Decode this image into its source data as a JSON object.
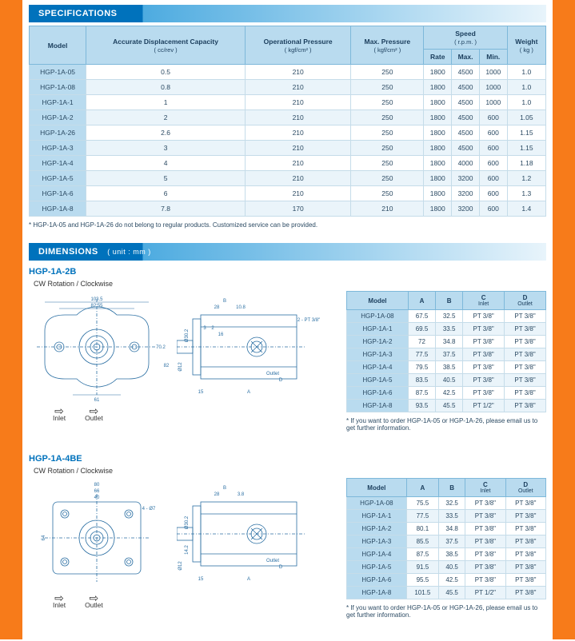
{
  "sections": {
    "specs_title": "SPECIFICATIONS",
    "dims_title": "DIMENSIONS",
    "dims_unit": "( unit : mm )"
  },
  "spec_headers": {
    "model": "Model",
    "disp": "Accurate Displacement Capacity",
    "disp_sub": "( cc/rev )",
    "op_press": "Operational Pressure",
    "op_press_sub": "( kgf/cm² )",
    "max_press": "Max. Pressure",
    "max_press_sub": "( kgf/cm² )",
    "speed": "Speed",
    "speed_sub": "( r.p.m. )",
    "rate": "Rate",
    "max": "Max.",
    "min": "Min.",
    "weight": "Weight",
    "weight_sub": "( kg )"
  },
  "spec_rows": [
    {
      "model": "HGP-1A-05",
      "disp": "0.5",
      "op": "210",
      "max": "250",
      "r": "1800",
      "mx": "4500",
      "mn": "1000",
      "w": "1.0"
    },
    {
      "model": "HGP-1A-08",
      "disp": "0.8",
      "op": "210",
      "max": "250",
      "r": "1800",
      "mx": "4500",
      "mn": "1000",
      "w": "1.0"
    },
    {
      "model": "HGP-1A-1",
      "disp": "1",
      "op": "210",
      "max": "250",
      "r": "1800",
      "mx": "4500",
      "mn": "1000",
      "w": "1.0"
    },
    {
      "model": "HGP-1A-2",
      "disp": "2",
      "op": "210",
      "max": "250",
      "r": "1800",
      "mx": "4500",
      "mn": "600",
      "w": "1.05"
    },
    {
      "model": "HGP-1A-26",
      "disp": "2.6",
      "op": "210",
      "max": "250",
      "r": "1800",
      "mx": "4500",
      "mn": "600",
      "w": "1.15"
    },
    {
      "model": "HGP-1A-3",
      "disp": "3",
      "op": "210",
      "max": "250",
      "r": "1800",
      "mx": "4500",
      "mn": "600",
      "w": "1.15"
    },
    {
      "model": "HGP-1A-4",
      "disp": "4",
      "op": "210",
      "max": "250",
      "r": "1800",
      "mx": "4000",
      "mn": "600",
      "w": "1.18"
    },
    {
      "model": "HGP-1A-5",
      "disp": "5",
      "op": "210",
      "max": "250",
      "r": "1800",
      "mx": "3200",
      "mn": "600",
      "w": "1.2"
    },
    {
      "model": "HGP-1A-6",
      "disp": "6",
      "op": "210",
      "max": "250",
      "r": "1800",
      "mx": "3200",
      "mn": "600",
      "w": "1.3"
    },
    {
      "model": "HGP-1A-8",
      "disp": "7.8",
      "op": "170",
      "max": "210",
      "r": "1800",
      "mx": "3200",
      "mn": "600",
      "w": "1.4"
    }
  ],
  "spec_footnote": "* HGP-1A-05 and HGP-1A-26 do not belong to regular products. Customized service can be provided.",
  "rotation_label": "CW Rotation / Clockwise",
  "inlet_label": "Inlet",
  "outlet_label": "Outlet",
  "dim_headers": {
    "model": "Model",
    "a": "A",
    "b": "B",
    "c": "C",
    "c_sub": "Inlet",
    "d": "D",
    "d_sub": "Outlet"
  },
  "model_2b": {
    "title": "HGP-1A-2B",
    "rows": [
      {
        "model": "HGP-1A-08",
        "a": "67.5",
        "b": "32.5",
        "c": "PT 3/8\"",
        "d": "PT 3/8\""
      },
      {
        "model": "HGP-1A-1",
        "a": "69.5",
        "b": "33.5",
        "c": "PT 3/8\"",
        "d": "PT 3/8\""
      },
      {
        "model": "HGP-1A-2",
        "a": "72",
        "b": "34.8",
        "c": "PT 3/8\"",
        "d": "PT 3/8\""
      },
      {
        "model": "HGP-1A-3",
        "a": "77.5",
        "b": "37.5",
        "c": "PT 3/8\"",
        "d": "PT 3/8\""
      },
      {
        "model": "HGP-1A-4",
        "a": "79.5",
        "b": "38.5",
        "c": "PT 3/8\"",
        "d": "PT 3/8\""
      },
      {
        "model": "HGP-1A-5",
        "a": "83.5",
        "b": "40.5",
        "c": "PT 3/8\"",
        "d": "PT 3/8\""
      },
      {
        "model": "HGP-1A-6",
        "a": "87.5",
        "b": "42.5",
        "c": "PT 3/8\"",
        "d": "PT 3/8\""
      },
      {
        "model": "HGP-1A-8",
        "a": "93.5",
        "b": "45.5",
        "c": "PT 1/2\"",
        "d": "PT 3/8\""
      }
    ],
    "footnote": "* If you want to order HGP-1A-05 or HGP-1A-26, please email us to get further information."
  },
  "model_4be": {
    "title": "HGP-1A-4BE",
    "rows": [
      {
        "model": "HGP-1A-08",
        "a": "75.5",
        "b": "32.5",
        "c": "PT 3/8\"",
        "d": "PT 3/8\""
      },
      {
        "model": "HGP-1A-1",
        "a": "77.5",
        "b": "33.5",
        "c": "PT 3/8\"",
        "d": "PT 3/8\""
      },
      {
        "model": "HGP-1A-2",
        "a": "80.1",
        "b": "34.8",
        "c": "PT 3/8\"",
        "d": "PT 3/8\""
      },
      {
        "model": "HGP-1A-3",
        "a": "85.5",
        "b": "37.5",
        "c": "PT 3/8\"",
        "d": "PT 3/8\""
      },
      {
        "model": "HGP-1A-4",
        "a": "87.5",
        "b": "38.5",
        "c": "PT 3/8\"",
        "d": "PT 3/8\""
      },
      {
        "model": "HGP-1A-5",
        "a": "91.5",
        "b": "40.5",
        "c": "PT 3/8\"",
        "d": "PT 3/8\""
      },
      {
        "model": "HGP-1A-6",
        "a": "95.5",
        "b": "42.5",
        "c": "PT 3/8\"",
        "d": "PT 3/8\""
      },
      {
        "model": "HGP-1A-8",
        "a": "101.5",
        "b": "45.5",
        "c": "PT 1/2\"",
        "d": "PT 3/8\""
      }
    ],
    "footnote": "* If you want to order HGP-1A-05 or HGP-1A-26, please email us to get further information."
  },
  "drawing_labels": {
    "d1_w1": "103.5",
    "d1_w2": "82.55",
    "d1_h": "70.2",
    "d1_h2": "82",
    "d1_bolt": "61",
    "d2_b": "B",
    "d2_28": "28",
    "d2_108": "10.8",
    "d2_3": "3",
    "d2_2": "2",
    "d2_16": "16",
    "d2_pt": "2 - PT 3/8\"",
    "d2_d30": "Ø30.2",
    "d2_d12": "Ø12",
    "d2_out": "Outlet",
    "d2_D": "D",
    "d2_A": "A",
    "d2_15": "15",
    "d3_80": "80",
    "d3_66": "66",
    "d3_40": "40",
    "d3_64": "64",
    "d3_o7": "4 - Ø7",
    "d4_38": "3.8",
    "d4_142": "14.2",
    "d4_d12_2": "Ø12"
  }
}
